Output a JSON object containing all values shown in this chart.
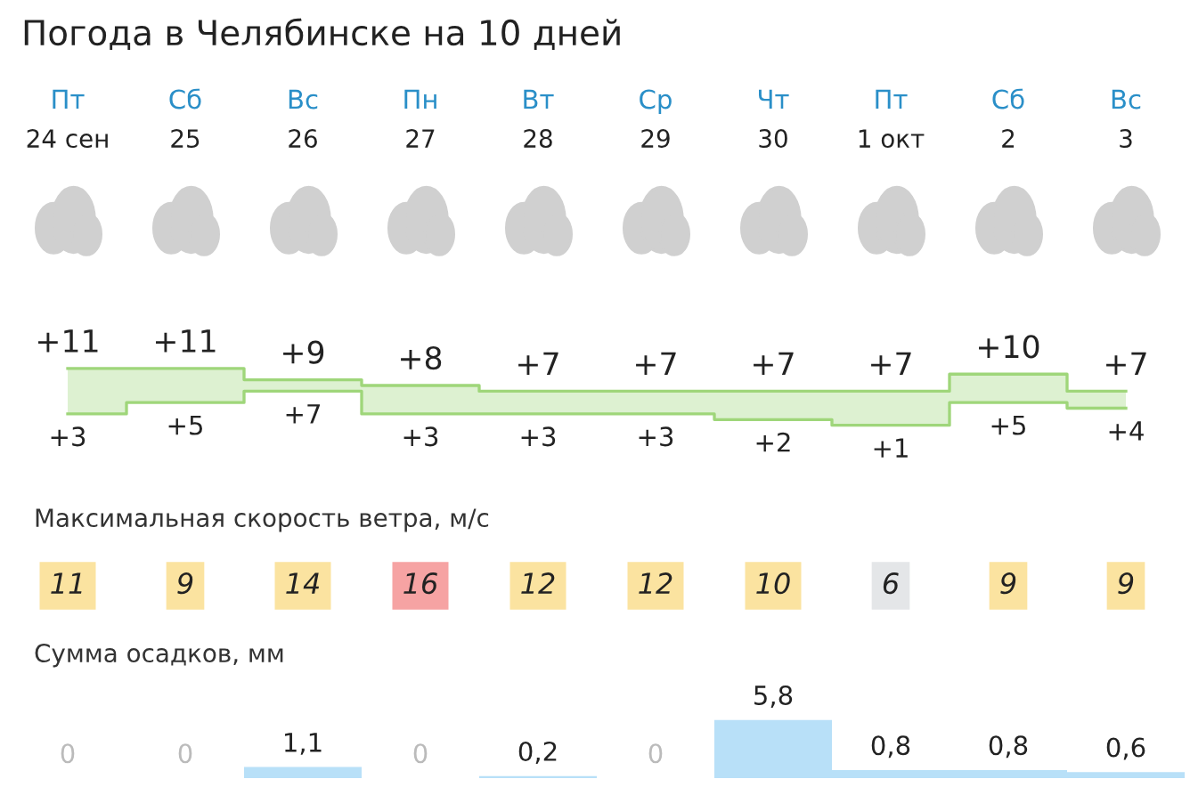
{
  "chart_data": [
    {
      "type": "step",
      "title": "Погода в Челябинске на 10 дней",
      "categories": [
        "Пт\n24 сен",
        "Сб\n25",
        "Вс\n26",
        "Пн\n27",
        "Вт\n28",
        "Ср\n29",
        "Чт\n30",
        "Пт\n1 окт",
        "Сб\n2",
        "Вс\n3"
      ],
      "series": [
        {
          "color": "#9fd67a",
          "values": [
            11,
            11,
            9,
            8,
            7,
            7,
            7,
            7,
            10,
            7
          ],
          "lower": [
            3,
            5,
            7,
            3,
            3,
            3,
            2,
            1,
            5,
            4
          ],
          "upper": [
            11,
            11,
            9,
            8,
            7,
            7,
            7,
            7,
            10,
            7
          ],
          "value_labels": [
            "+11",
            "+11",
            "+9",
            "+8",
            "+7",
            "+7",
            "+7",
            "+7",
            "+10",
            "+7"
          ]
        },
        {
          "color": "#9fd67a",
          "values": [
            3,
            5,
            7,
            3,
            3,
            3,
            2,
            1,
            5,
            4
          ],
          "value_labels": [
            "+3",
            "+5",
            "+7",
            "+3",
            "+3",
            "+3",
            "+2",
            "+1",
            "+5",
            "+4"
          ]
        }
      ],
      "grid": false,
      "legend": false
    },
    {
      "type": "other",
      "title": "Максимальная скорость ветра, м/с",
      "values": [
        11,
        9,
        14,
        16,
        12,
        12,
        10,
        6,
        9,
        9
      ],
      "value_labels": [
        "11",
        "9",
        "14",
        "16",
        "12",
        "12",
        "10",
        "6",
        "9",
        "9"
      ],
      "colors": [
        "#fbe3a0",
        "#fbe3a0",
        "#fbe3a0",
        "#f6a3a3",
        "#fbe3a0",
        "#fbe3a0",
        "#fbe3a0",
        "#e4e6e8",
        "#fbe3a0",
        "#fbe3a0"
      ]
    },
    {
      "type": "bar",
      "title": "Сумма осадков, мм",
      "values": [
        0,
        0,
        1.1,
        0,
        0.2,
        0,
        5.8,
        0.8,
        0.8,
        0.6
      ],
      "value_labels": [
        "0",
        "0",
        "1,1",
        "0",
        "0,2",
        "0",
        "5,8",
        "0,8",
        "0,8",
        "0,6"
      ],
      "color": "#b8e0f8",
      "grid": false
    }
  ]
}
